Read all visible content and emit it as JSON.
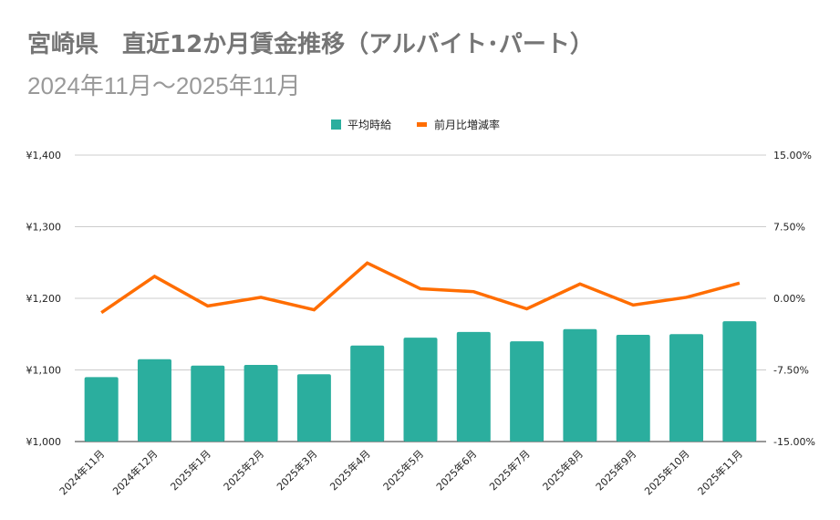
{
  "chart_data": {
    "type": "bar+line",
    "title": "宮崎県　直近12か月賃金推移（アルバイト･パート）",
    "subtitle": "2024年11月～2025年11月",
    "categories": [
      "2024年11月",
      "2024年12月",
      "2025年1月",
      "2025年2月",
      "2025年3月",
      "2025年4月",
      "2025年5月",
      "2025年6月",
      "2025年7月",
      "2025年8月",
      "2025年9月",
      "2025年10月",
      "2025年11月"
    ],
    "series": [
      {
        "name": "平均時給",
        "type": "bar",
        "axis": "left",
        "color": "#2bae9e",
        "values": [
          1090,
          1115,
          1106,
          1107,
          1094,
          1134,
          1145,
          1153,
          1140,
          1157,
          1149,
          1150,
          1168
        ]
      },
      {
        "name": "前月比増減率",
        "type": "line",
        "axis": "right",
        "color": "#ff6d00",
        "values": [
          -1.5,
          2.3,
          -0.8,
          0.1,
          -1.2,
          3.7,
          1.0,
          0.7,
          -1.1,
          1.5,
          -0.7,
          0.1,
          1.6
        ]
      }
    ],
    "left_axis": {
      "ylim": [
        1000,
        1400
      ],
      "ticks": [
        1000,
        1100,
        1200,
        1300,
        1400
      ],
      "tick_labels": [
        "¥1,000",
        "¥1,100",
        "¥1,200",
        "¥1,300",
        "¥1,400"
      ]
    },
    "right_axis": {
      "ylim": [
        -15,
        15
      ],
      "ticks": [
        -15,
        -7.5,
        0,
        7.5,
        15
      ],
      "tick_labels": [
        "-15.00%",
        "-7.50%",
        "0.00%",
        "7.50%",
        "15.00%"
      ]
    },
    "grid": true,
    "legend_placement": "top"
  }
}
